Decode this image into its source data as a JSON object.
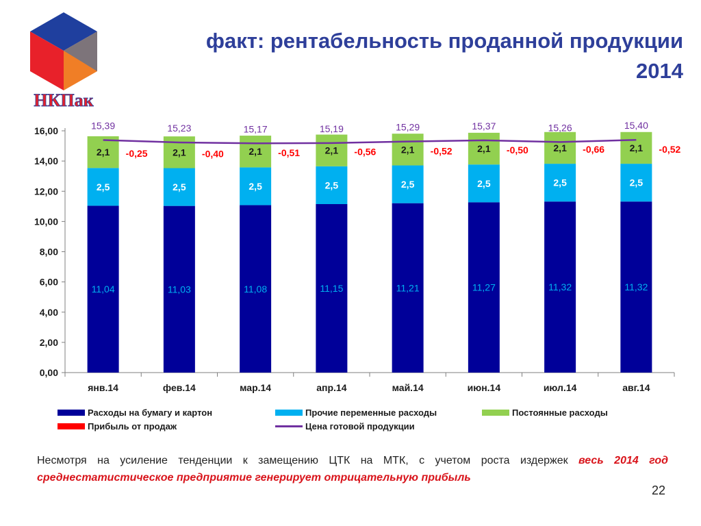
{
  "slide": {
    "title_line1": "факт: рентабельность проданной продукции",
    "title_line2": "2014",
    "logo_text": "НКПак",
    "note_plain": "Несмотря на усиление тенденции к замещению ЦТК на МТК, с учетом роста издержек ",
    "note_emph": "весь 2014 год среднестатистическое предприятие генерирует отрицательную прибыль",
    "page_number": "22"
  },
  "colors": {
    "paper": "#000099",
    "other_var": "#00b0f0",
    "fixed": "#92d050",
    "profit": "#ff0000",
    "price": "#7030a0",
    "title": "#2e3f9a"
  },
  "chart_data": {
    "type": "bar",
    "stacked": true,
    "categories": [
      "янв.14",
      "фев.14",
      "мар.14",
      "апр.14",
      "май.14",
      "июн.14",
      "июл.14",
      "авг.14"
    ],
    "ylim": [
      0,
      16
    ],
    "yticks": [
      "0,00",
      "2,00",
      "4,00",
      "6,00",
      "8,00",
      "10,00",
      "12,00",
      "14,00",
      "16,00"
    ],
    "series": [
      {
        "name": "Расходы на бумагу и картон",
        "values": [
          11.04,
          11.03,
          11.08,
          11.15,
          11.21,
          11.27,
          11.32,
          11.32
        ],
        "labels": [
          "11,04",
          "11,03",
          "11,08",
          "11,15",
          "11,21",
          "11,27",
          "11,32",
          "11,32"
        ]
      },
      {
        "name": "Прочие переменные расходы",
        "values": [
          2.5,
          2.5,
          2.5,
          2.5,
          2.5,
          2.5,
          2.5,
          2.5
        ],
        "labels": [
          "2,5",
          "2,5",
          "2,5",
          "2,5",
          "2,5",
          "2,5",
          "2,5",
          "2,5"
        ]
      },
      {
        "name": "Постоянные расходы",
        "values": [
          2.1,
          2.1,
          2.1,
          2.1,
          2.1,
          2.1,
          2.1,
          2.1
        ],
        "labels": [
          "2,1",
          "2,1",
          "2,1",
          "2,1",
          "2,1",
          "2,1",
          "2,1",
          "2,1"
        ]
      },
      {
        "name": "Прибыль от продаж",
        "values": [
          -0.25,
          -0.4,
          -0.51,
          -0.56,
          -0.52,
          -0.5,
          -0.66,
          -0.52
        ],
        "labels": [
          "-0,25",
          "-0,40",
          "-0,51",
          "-0,56",
          "-0,52",
          "-0,50",
          "-0,66",
          "-0,52"
        ]
      },
      {
        "name": "Цена готовой продукции",
        "type": "line",
        "values": [
          15.39,
          15.23,
          15.17,
          15.19,
          15.29,
          15.37,
          15.26,
          15.4
        ],
        "labels": [
          "15,39",
          "15,23",
          "15,17",
          "15,19",
          "15,29",
          "15,37",
          "15,26",
          "15,40"
        ]
      }
    ],
    "legend_position": "bottom"
  }
}
